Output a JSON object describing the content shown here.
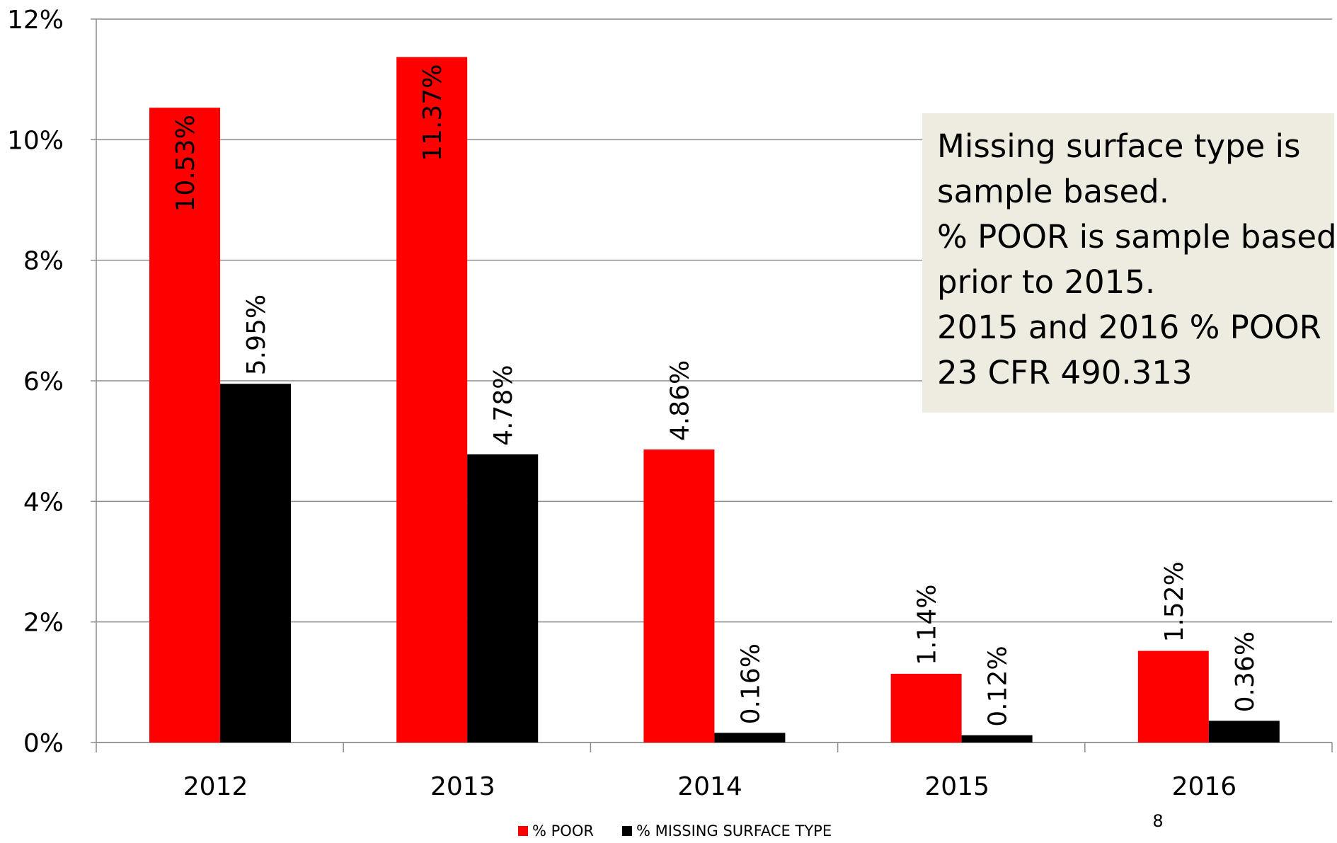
{
  "chart_data": {
    "type": "bar",
    "categories": [
      "2012",
      "2013",
      "2014",
      "2015",
      "2016"
    ],
    "series": [
      {
        "name": "% POOR",
        "color": "#ff0000",
        "values": [
          10.53,
          11.37,
          4.86,
          1.14,
          1.52
        ],
        "value_labels": [
          "10.53%",
          "11.37%",
          "4.86%",
          "1.14%",
          "1.52%"
        ]
      },
      {
        "name": "% MISSING SURFACE TYPE",
        "color": "#000000",
        "values": [
          5.95,
          4.78,
          0.16,
          0.12,
          0.36
        ],
        "value_labels": [
          "5.95%",
          "4.78%",
          "0.16%",
          "0.12%",
          "0.36%"
        ]
      }
    ],
    "ylim": [
      0,
      12
    ],
    "yticks": [
      {
        "value": 0,
        "label": "0%"
      },
      {
        "value": 2,
        "label": "2%"
      },
      {
        "value": 4,
        "label": "4%"
      },
      {
        "value": 6,
        "label": "6%"
      },
      {
        "value": 8,
        "label": "8%"
      },
      {
        "value": 10,
        "label": "10%"
      },
      {
        "value": 12,
        "label": "12%"
      }
    ],
    "grid": true,
    "legend": "bottom",
    "annotation": [
      "Missing surface type is",
      "sample based.",
      "% POOR is sample based",
      "prior to 2015.",
      "2015 and 2016 % POOR",
      "23 CFR 490.313"
    ],
    "page_number": "8"
  }
}
